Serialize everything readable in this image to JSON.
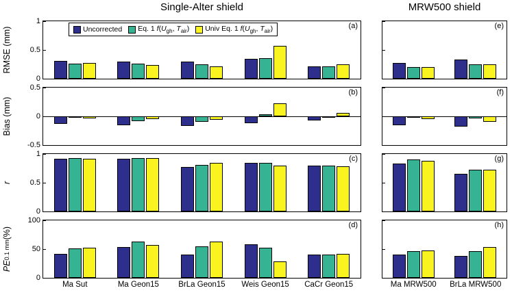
{
  "titles": {
    "left": "Single-Alter shield",
    "right": "MRW500 shield"
  },
  "legend": {
    "series": [
      {
        "label": "Uncorrected",
        "color": "#2e2f8d"
      },
      {
        "label": "Eq. 1 *f*(*U*_gh_, *T*_air_)",
        "color": "#36b392"
      },
      {
        "label": "Univ Eq. 1 *f*(*U*_gh_, *T*_air_)",
        "color": "#f9f320"
      }
    ]
  },
  "rows": [
    {
      "ylabel": "RMSE (mm)"
    },
    {
      "ylabel": "Bias (mm)"
    },
    {
      "ylabel": "*r*"
    },
    {
      "ylabel": "*PE*_0.1 mm_ (%)"
    }
  ],
  "chart_data": [
    {
      "panel": "a",
      "type": "bar",
      "letter": "(a)",
      "ylabel": "RMSE (mm)",
      "ylim": [
        0,
        1
      ],
      "yticks": [
        0,
        0.5,
        1
      ],
      "ytick_labels": [
        "0",
        "0.5",
        "1"
      ],
      "show_yticklabels": true,
      "show_xticklabels": false,
      "categories": [
        "Ma Sut",
        "Ma Geon15",
        "BrLa Geon15",
        "Weis Geon15",
        "CaCr Geon15"
      ],
      "series": [
        {
          "name": "Uncorrected",
          "values": [
            0.31,
            0.3,
            0.3,
            0.34,
            0.22
          ]
        },
        {
          "name": "Eq. 1 f(Ugh, Tair)",
          "values": [
            0.26,
            0.26,
            0.25,
            0.36,
            0.22
          ]
        },
        {
          "name": "Univ Eq. 1 f(Ugh, Tair)",
          "values": [
            0.27,
            0.24,
            0.21,
            0.57,
            0.25
          ]
        }
      ]
    },
    {
      "panel": "e",
      "type": "bar",
      "letter": "(e)",
      "ylabel": "RMSE (mm)",
      "ylim": [
        0,
        1
      ],
      "yticks": [
        0,
        0.5,
        1
      ],
      "ytick_labels": [
        "0",
        "0.5",
        "1"
      ],
      "show_yticklabels": false,
      "show_xticklabels": false,
      "categories": [
        "Ma MRW500",
        "BrLa MRW500"
      ],
      "series": [
        {
          "name": "Uncorrected",
          "values": [
            0.27,
            0.33
          ]
        },
        {
          "name": "Eq. 1 f(Ugh, Tair)",
          "values": [
            0.2,
            0.25
          ]
        },
        {
          "name": "Univ Eq. 1 f(Ugh, Tair)",
          "values": [
            0.2,
            0.25
          ]
        }
      ]
    },
    {
      "panel": "b",
      "type": "bar",
      "letter": "(b)",
      "ylabel": "Bias (mm)",
      "ylim": [
        -0.5,
        0.5
      ],
      "yticks": [
        -0.5,
        0,
        0.5
      ],
      "ytick_labels": [
        "-0.5",
        "0",
        "0.5"
      ],
      "show_yticklabels": true,
      "show_xticklabels": false,
      "categories": [
        "Ma Sut",
        "Ma Geon15",
        "BrLa Geon15",
        "Weis Geon15",
        "CaCr Geon15"
      ],
      "series": [
        {
          "name": "Uncorrected",
          "values": [
            -0.13,
            -0.15,
            -0.17,
            -0.12,
            -0.07
          ]
        },
        {
          "name": "Eq. 1 f(Ugh, Tair)",
          "values": [
            -0.02,
            -0.08,
            -0.1,
            0.04,
            -0.02
          ]
        },
        {
          "name": "Univ Eq. 1 f(Ugh, Tair)",
          "values": [
            -0.03,
            -0.05,
            -0.06,
            0.23,
            0.06
          ]
        }
      ]
    },
    {
      "panel": "f",
      "type": "bar",
      "letter": "(f)",
      "ylabel": "Bias (mm)",
      "ylim": [
        -0.5,
        0.5
      ],
      "yticks": [
        -0.5,
        0,
        0.5
      ],
      "ytick_labels": [
        "-0.5",
        "0",
        "0.5"
      ],
      "show_yticklabels": false,
      "show_xticklabels": false,
      "categories": [
        "Ma MRW500",
        "BrLa MRW500"
      ],
      "series": [
        {
          "name": "Uncorrected",
          "values": [
            -0.15,
            -0.18
          ]
        },
        {
          "name": "Eq. 1 f(Ugh, Tair)",
          "values": [
            -0.02,
            -0.03
          ]
        },
        {
          "name": "Univ Eq. 1 f(Ugh, Tair)",
          "values": [
            -0.05,
            -0.1
          ]
        }
      ]
    },
    {
      "panel": "c",
      "type": "bar",
      "letter": "(c)",
      "ylabel": "r",
      "ylim": [
        0,
        1
      ],
      "yticks": [
        0,
        0.5,
        1
      ],
      "ytick_labels": [
        "0",
        "0.5",
        "1"
      ],
      "show_yticklabels": true,
      "show_xticklabels": false,
      "categories": [
        "Ma Sut",
        "Ma Geon15",
        "BrLa Geon15",
        "Weis Geon15",
        "CaCr Geon15"
      ],
      "series": [
        {
          "name": "Uncorrected",
          "values": [
            0.92,
            0.92,
            0.77,
            0.85,
            0.8
          ]
        },
        {
          "name": "Eq. 1 f(Ugh, Tair)",
          "values": [
            0.93,
            0.93,
            0.81,
            0.85,
            0.8
          ]
        },
        {
          "name": "Univ Eq. 1 f(Ugh, Tair)",
          "values": [
            0.92,
            0.93,
            0.84,
            0.8,
            0.79
          ]
        }
      ]
    },
    {
      "panel": "g",
      "type": "bar",
      "letter": "(g)",
      "ylabel": "r",
      "ylim": [
        0,
        1
      ],
      "yticks": [
        0,
        0.5,
        1
      ],
      "ytick_labels": [
        "0",
        "0.5",
        "1"
      ],
      "show_yticklabels": false,
      "show_xticklabels": false,
      "categories": [
        "Ma MRW500",
        "BrLa MRW500"
      ],
      "series": [
        {
          "name": "Uncorrected",
          "values": [
            0.83,
            0.65
          ]
        },
        {
          "name": "Eq. 1 f(Ugh, Tair)",
          "values": [
            0.9,
            0.73
          ]
        },
        {
          "name": "Univ Eq. 1 f(Ugh, Tair)",
          "values": [
            0.88,
            0.73
          ]
        }
      ]
    },
    {
      "panel": "d",
      "type": "bar",
      "letter": "(d)",
      "ylabel": "PE 0.1 mm (%)",
      "ylim": [
        0,
        100
      ],
      "yticks": [
        0,
        50,
        100
      ],
      "ytick_labels": [
        "0",
        "50",
        "100"
      ],
      "show_yticklabels": true,
      "show_xticklabels": true,
      "categories": [
        "Ma Sut",
        "Ma Geon15",
        "BrLa Geon15",
        "Weis Geon15",
        "CaCr Geon15"
      ],
      "series": [
        {
          "name": "Uncorrected",
          "values": [
            42,
            53,
            40,
            58,
            41
          ]
        },
        {
          "name": "Eq. 1 f(Ugh, Tair)",
          "values": [
            51,
            63,
            55,
            52,
            41
          ]
        },
        {
          "name": "Univ Eq. 1 f(Ugh, Tair)",
          "values": [
            52,
            57,
            63,
            29,
            42
          ]
        }
      ]
    },
    {
      "panel": "h",
      "type": "bar",
      "letter": "(h)",
      "ylabel": "PE 0.1 mm (%)",
      "ylim": [
        0,
        100
      ],
      "yticks": [
        0,
        50,
        100
      ],
      "ytick_labels": [
        "0",
        "50",
        "100"
      ],
      "show_yticklabels": false,
      "show_xticklabels": true,
      "categories": [
        "Ma MRW500",
        "BrLa MRW500"
      ],
      "series": [
        {
          "name": "Uncorrected",
          "values": [
            40,
            38
          ]
        },
        {
          "name": "Eq. 1 f(Ugh, Tair)",
          "values": [
            46,
            47
          ]
        },
        {
          "name": "Univ Eq. 1 f(Ugh, Tair)",
          "values": [
            48,
            53
          ]
        }
      ]
    }
  ]
}
